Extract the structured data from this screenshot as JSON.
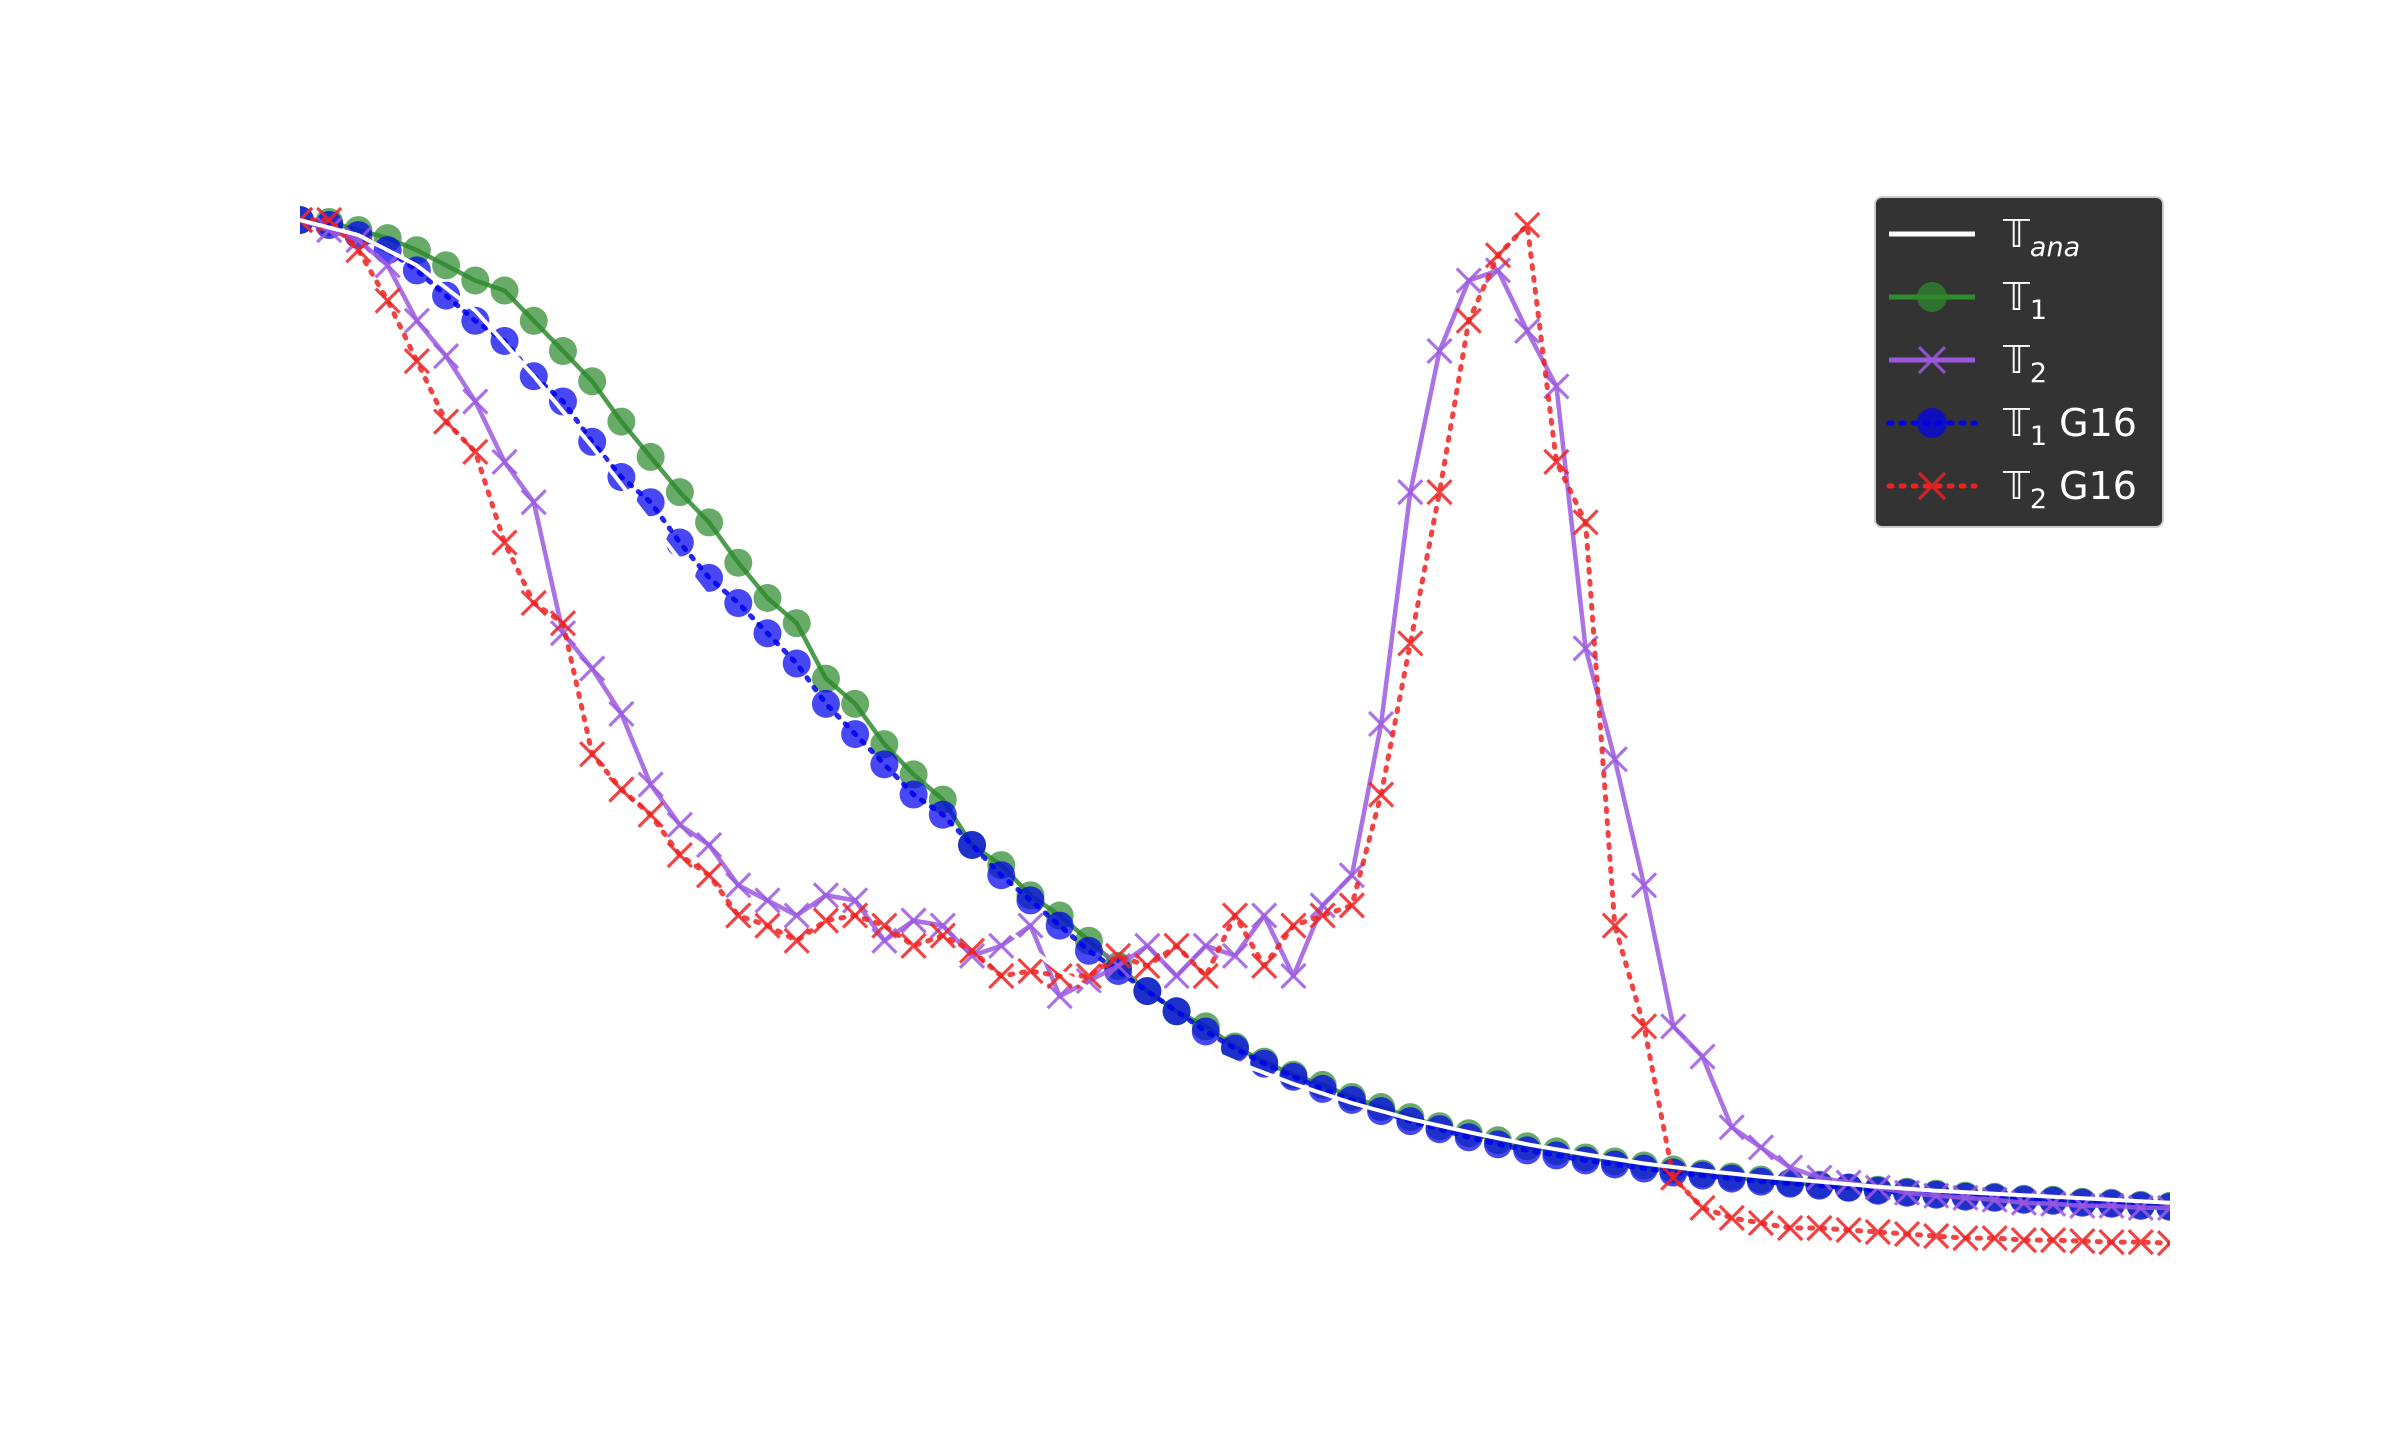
{
  "chart_data": {
    "type": "line",
    "title": "",
    "xlabel": "",
    "ylabel": "",
    "xlim": [
      0,
      64
    ],
    "ylim": [
      0,
      1
    ],
    "axes_visible": false,
    "grid": false,
    "legend_position": "top-right",
    "legend_style": {
      "background": "#333333",
      "text_color": "#ffffff"
    },
    "colors": {
      "ana": "#ffffff",
      "t1": "#2e8b2e",
      "t2": "#9b59e0",
      "t1_g16": "#0000ee",
      "t2_g16": "#ee2222"
    },
    "series": [
      {
        "key": "ana",
        "legend_main": "𝕋",
        "legend_sub": "ana",
        "legend_suffix": "",
        "style": "solid",
        "marker": "none",
        "x": [
          0,
          2,
          4,
          6,
          8,
          10,
          12,
          14,
          16,
          18,
          20,
          22,
          24,
          26,
          28,
          30,
          32,
          34,
          36,
          38,
          40,
          42,
          44,
          46,
          48,
          50,
          52,
          54,
          56,
          58,
          60,
          62,
          64
        ],
        "values": [
          1.0,
          0.985,
          0.955,
          0.91,
          0.845,
          0.775,
          0.7,
          0.625,
          0.55,
          0.48,
          0.415,
          0.355,
          0.3,
          0.255,
          0.22,
          0.19,
          0.165,
          0.143,
          0.124,
          0.108,
          0.095,
          0.083,
          0.073,
          0.064,
          0.057,
          0.051,
          0.046,
          0.041,
          0.037,
          0.034,
          0.031,
          0.028,
          0.025
        ]
      },
      {
        "key": "t1",
        "legend_main": "𝕋",
        "legend_sub": "1",
        "legend_suffix": "",
        "style": "solid",
        "marker": "circle",
        "x": [
          0,
          1,
          2,
          3,
          4,
          5,
          6,
          7,
          8,
          9,
          10,
          11,
          12,
          13,
          14,
          15,
          16,
          17,
          18,
          19,
          20,
          21,
          22,
          23,
          24,
          25,
          26,
          27,
          28,
          29,
          30,
          31,
          32,
          33,
          34,
          35,
          36,
          37,
          38,
          39,
          40,
          41,
          42,
          43,
          44,
          45,
          46,
          47,
          48,
          49,
          50,
          51,
          52,
          53,
          54,
          55,
          56,
          57,
          58,
          59,
          60,
          61,
          62,
          63,
          64
        ],
        "values": [
          1.0,
          0.998,
          0.99,
          0.982,
          0.97,
          0.955,
          0.94,
          0.93,
          0.9,
          0.87,
          0.84,
          0.8,
          0.765,
          0.73,
          0.7,
          0.66,
          0.625,
          0.6,
          0.545,
          0.52,
          0.48,
          0.45,
          0.425,
          0.38,
          0.36,
          0.33,
          0.31,
          0.285,
          0.26,
          0.235,
          0.215,
          0.2,
          0.18,
          0.165,
          0.152,
          0.142,
          0.13,
          0.12,
          0.11,
          0.101,
          0.094,
          0.087,
          0.081,
          0.076,
          0.07,
          0.066,
          0.062,
          0.058,
          0.054,
          0.051,
          0.048,
          0.045,
          0.043,
          0.04,
          0.038,
          0.036,
          0.034,
          0.032,
          0.031,
          0.029,
          0.028,
          0.026,
          0.025,
          0.023,
          0.022
        ]
      },
      {
        "key": "t2",
        "legend_main": "𝕋",
        "legend_sub": "2",
        "legend_suffix": "",
        "style": "solid",
        "marker": "x",
        "x": [
          0,
          1,
          2,
          3,
          4,
          5,
          6,
          7,
          8,
          9,
          10,
          11,
          12,
          13,
          14,
          15,
          16,
          17,
          18,
          19,
          20,
          21,
          22,
          23,
          24,
          25,
          26,
          27,
          28,
          29,
          30,
          31,
          32,
          33,
          34,
          35,
          36,
          37,
          38,
          39,
          40,
          41,
          42,
          43,
          44,
          45,
          46,
          47,
          48,
          49,
          50,
          51,
          52,
          53,
          54,
          55,
          56,
          57,
          58,
          59,
          60,
          61,
          62,
          63,
          64
        ],
        "values": [
          1.0,
          0.99,
          0.98,
          0.955,
          0.9,
          0.865,
          0.82,
          0.76,
          0.72,
          0.59,
          0.555,
          0.51,
          0.44,
          0.4,
          0.38,
          0.34,
          0.325,
          0.31,
          0.33,
          0.325,
          0.285,
          0.305,
          0.3,
          0.27,
          0.28,
          0.3,
          0.23,
          0.245,
          0.26,
          0.28,
          0.25,
          0.28,
          0.27,
          0.31,
          0.25,
          0.32,
          0.35,
          0.5,
          0.73,
          0.87,
          0.94,
          0.95,
          0.89,
          0.835,
          0.575,
          0.465,
          0.34,
          0.2,
          0.17,
          0.1,
          0.08,
          0.06,
          0.05,
          0.045,
          0.04,
          0.035,
          0.032,
          0.03,
          0.028,
          0.025,
          0.024,
          0.022,
          0.022,
          0.02,
          0.02
        ]
      },
      {
        "key": "t1_g16",
        "legend_main": "𝕋",
        "legend_sub": "1",
        "legend_suffix": " G16",
        "style": "dotted",
        "marker": "circle",
        "x": [
          0,
          1,
          2,
          3,
          4,
          5,
          6,
          7,
          8,
          9,
          10,
          11,
          12,
          13,
          14,
          15,
          16,
          17,
          18,
          19,
          20,
          21,
          22,
          23,
          24,
          25,
          26,
          27,
          28,
          29,
          30,
          31,
          32,
          33,
          34,
          35,
          36,
          37,
          38,
          39,
          40,
          41,
          42,
          43,
          44,
          45,
          46,
          47,
          48,
          49,
          50,
          51,
          52,
          53,
          54,
          55,
          56,
          57,
          58,
          59,
          60,
          61,
          62,
          63,
          64
        ],
        "values": [
          1.0,
          0.995,
          0.985,
          0.97,
          0.95,
          0.925,
          0.9,
          0.88,
          0.845,
          0.82,
          0.78,
          0.745,
          0.72,
          0.68,
          0.645,
          0.62,
          0.59,
          0.56,
          0.52,
          0.49,
          0.46,
          0.43,
          0.41,
          0.38,
          0.35,
          0.325,
          0.3,
          0.275,
          0.255,
          0.235,
          0.215,
          0.195,
          0.178,
          0.163,
          0.15,
          0.138,
          0.127,
          0.116,
          0.106,
          0.098,
          0.09,
          0.083,
          0.077,
          0.072,
          0.067,
          0.063,
          0.059,
          0.055,
          0.052,
          0.049,
          0.046,
          0.044,
          0.042,
          0.04,
          0.037,
          0.035,
          0.033,
          0.031,
          0.03,
          0.028,
          0.027,
          0.025,
          0.024,
          0.022,
          0.021
        ]
      },
      {
        "key": "t2_g16",
        "legend_main": "𝕋",
        "legend_sub": "2",
        "legend_suffix": " G16",
        "style": "dotted",
        "marker": "x",
        "x": [
          0,
          1,
          2,
          3,
          4,
          5,
          6,
          7,
          8,
          9,
          10,
          11,
          12,
          13,
          14,
          15,
          16,
          17,
          18,
          19,
          20,
          21,
          22,
          23,
          24,
          25,
          26,
          27,
          28,
          29,
          30,
          31,
          32,
          33,
          34,
          35,
          36,
          37,
          38,
          39,
          40,
          41,
          42,
          43,
          44,
          45,
          46,
          47,
          48,
          49,
          50,
          51,
          52,
          53,
          54,
          55,
          56,
          57,
          58,
          59,
          60,
          61,
          62,
          63,
          64
        ],
        "values": [
          1.0,
          1.0,
          0.97,
          0.92,
          0.86,
          0.8,
          0.77,
          0.68,
          0.62,
          0.6,
          0.47,
          0.435,
          0.41,
          0.37,
          0.35,
          0.31,
          0.3,
          0.285,
          0.305,
          0.31,
          0.3,
          0.28,
          0.29,
          0.275,
          0.25,
          0.255,
          0.25,
          0.25,
          0.27,
          0.26,
          0.28,
          0.25,
          0.31,
          0.26,
          0.3,
          0.31,
          0.32,
          0.43,
          0.58,
          0.73,
          0.9,
          0.965,
          0.995,
          0.76,
          0.7,
          0.3,
          0.2,
          0.05,
          0.02,
          0.01,
          0.005,
          0.0,
          0.0,
          -0.002,
          -0.004,
          -0.006,
          -0.008,
          -0.01,
          -0.01,
          -0.012,
          -0.012,
          -0.013,
          -0.014,
          -0.014,
          -0.015
        ]
      }
    ]
  }
}
